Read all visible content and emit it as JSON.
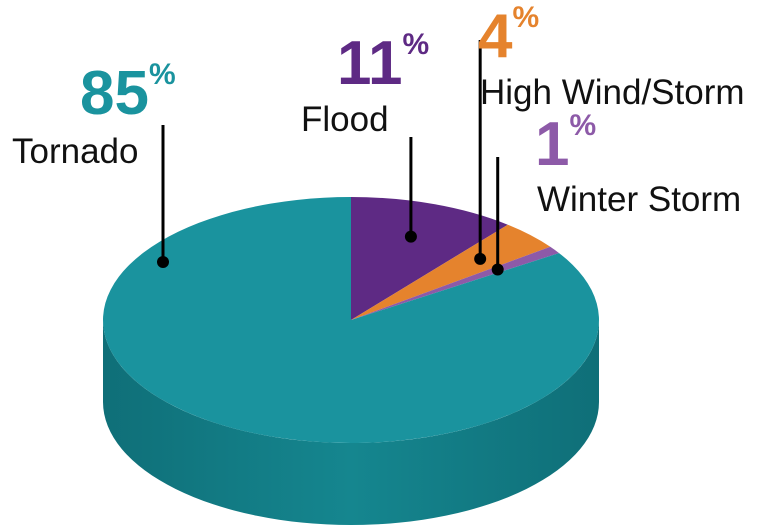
{
  "chart_data": {
    "type": "pie",
    "style": "3d",
    "series": [
      {
        "label": "Tornado",
        "value": 85,
        "value_text": "85",
        "unit": "%",
        "color": "#1a939e",
        "side_color": "#137e88"
      },
      {
        "label": "Flood",
        "value": 11,
        "value_text": "11",
        "unit": "%",
        "color": "#5e2a84",
        "side_color": "#4b2069"
      },
      {
        "label": "High Wind/Storm",
        "value": 4,
        "value_text": "4",
        "unit": "%",
        "color": "#e5832d",
        "side_color": "#c46b20"
      },
      {
        "label": "Winter Storm",
        "value": 1,
        "value_text": "1",
        "unit": "%",
        "color": "#8d5aa8",
        "side_color": "#734690"
      }
    ]
  }
}
